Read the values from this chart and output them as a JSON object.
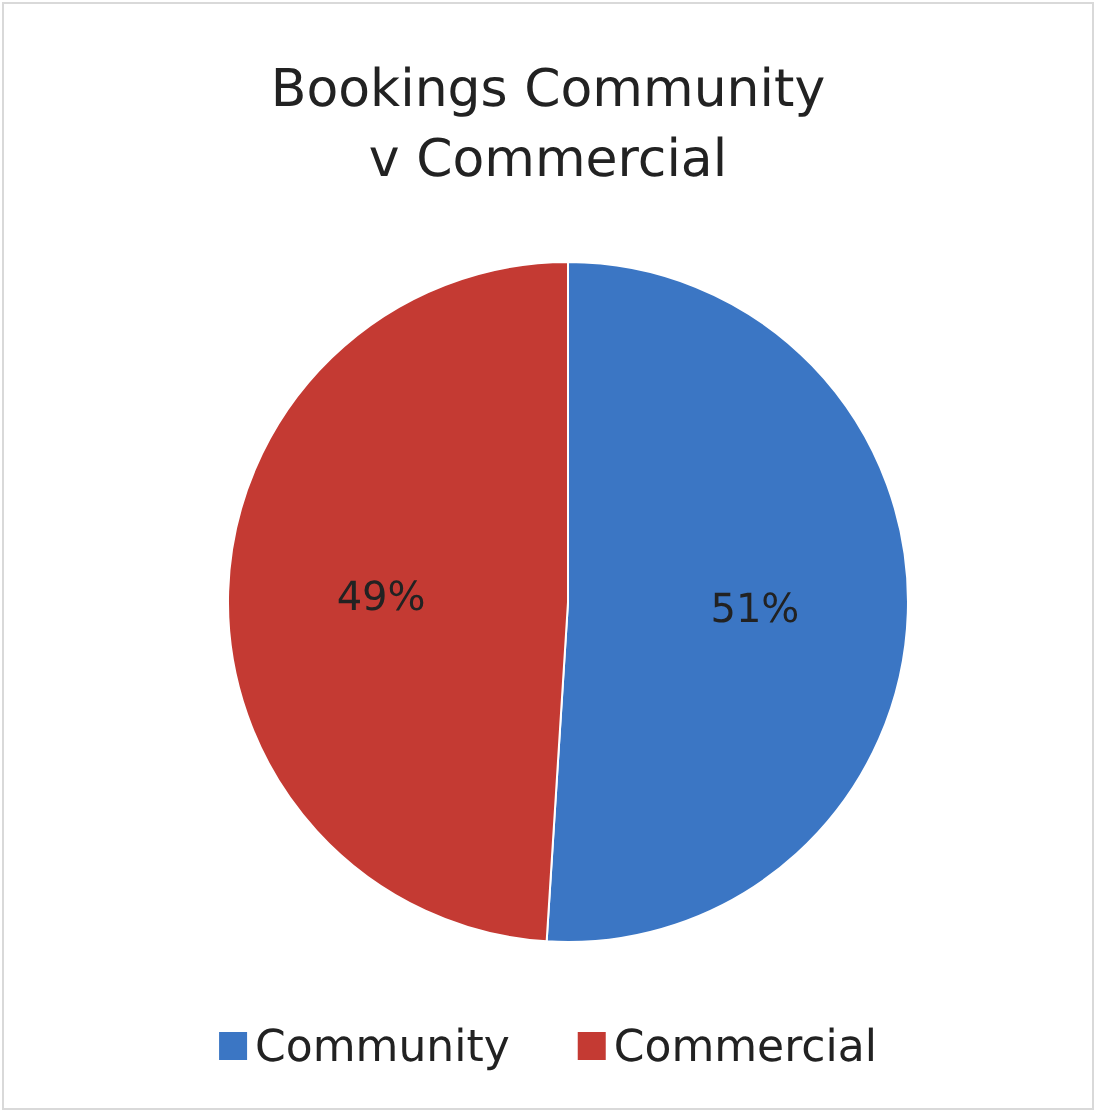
{
  "chart_data": {
    "type": "pie",
    "title": "Bookings Community v Commercial",
    "categories": [
      "Community",
      "Commercial"
    ],
    "values": [
      51,
      49
    ],
    "value_labels": [
      "51%",
      "49%"
    ],
    "colors": [
      "#3b76c4",
      "#c43a33"
    ],
    "legend": "bottom"
  }
}
